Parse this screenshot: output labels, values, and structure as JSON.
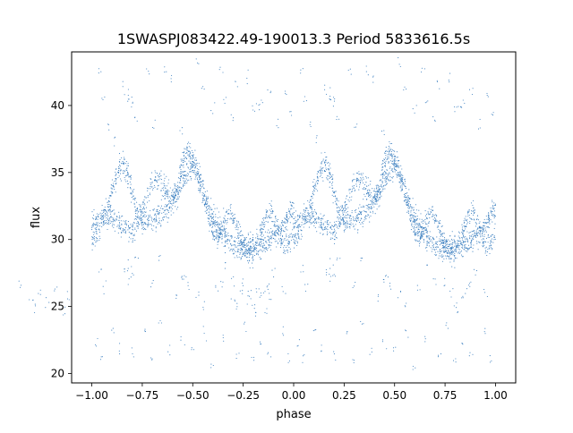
{
  "chart_data": {
    "type": "scatter",
    "title": "1SWASPJ083422.49-190013.3 Period 5833616.5s",
    "xlabel": "phase",
    "ylabel": "flux",
    "xlim": [
      -1.1,
      1.1
    ],
    "ylim": [
      19.3,
      44.0
    ],
    "x_ticks": [
      -1.0,
      -0.75,
      -0.5,
      -0.25,
      0.0,
      0.25,
      0.5,
      0.75,
      1.0
    ],
    "x_tick_labels": [
      "−1.00",
      "−0.75",
      "−0.50",
      "−0.25",
      "0.00",
      "0.25",
      "0.50",
      "0.75",
      "1.00"
    ],
    "y_ticks": [
      20,
      25,
      30,
      35,
      40
    ],
    "y_tick_labels": [
      "20",
      "25",
      "30",
      "35",
      "40"
    ],
    "grid": false,
    "legend": "none",
    "marker_color": "#3a7ebf",
    "phase_folded": true,
    "series": [
      {
        "x": [
          0.0,
          0.02,
          0.04,
          0.06,
          0.08,
          0.1,
          0.12,
          0.14,
          0.16,
          0.18,
          0.2,
          0.22,
          0.24,
          0.26,
          0.28,
          0.3,
          0.32,
          0.34,
          0.36,
          0.38,
          0.4,
          0.42,
          0.44,
          0.46,
          0.48,
          0.5,
          0.52,
          0.54,
          0.56,
          0.58,
          0.6,
          0.62,
          0.64,
          0.66,
          0.68,
          0.7,
          0.72,
          0.74,
          0.76,
          0.78,
          0.8,
          0.82,
          0.84,
          0.86,
          0.88,
          0.9,
          0.92,
          0.94,
          0.96,
          0.98,
          1.0
        ],
        "y": [
          29.8,
          30.2,
          30.9,
          31.8,
          32.6,
          33.6,
          34.6,
          35.5,
          35.5,
          34.8,
          33.5,
          32.2,
          31.6,
          31.3,
          31.3,
          31.5,
          31.6,
          31.8,
          32.2,
          32.4,
          32.8,
          33.4,
          35.0,
          36.2,
          36.4,
          36.0,
          35.3,
          34.3,
          33.2,
          32.4,
          31.6,
          31.0,
          30.6,
          30.2,
          29.8,
          29.6,
          29.5,
          29.4,
          29.4,
          29.4,
          29.5,
          29.6,
          29.7,
          29.8,
          30.0,
          30.2,
          30.4,
          30.8,
          31.4,
          31.9,
          32.2
        ]
      },
      {
        "x": [
          0.0,
          0.02,
          0.04,
          0.06,
          0.08,
          0.1,
          0.12,
          0.14,
          0.16,
          0.18,
          0.2,
          0.22,
          0.24,
          0.26,
          0.28,
          0.3,
          0.32,
          0.34,
          0.36,
          0.38,
          0.4,
          0.42,
          0.44,
          0.46,
          0.48,
          0.5,
          0.52,
          0.54,
          0.56,
          0.58,
          0.6,
          0.62,
          0.64,
          0.66,
          0.68,
          0.7,
          0.72,
          0.74,
          0.76,
          0.78,
          0.8,
          0.82,
          0.84,
          0.86,
          0.88,
          0.9,
          0.92,
          0.94,
          0.96,
          0.98,
          1.0
        ],
        "y": [
          31.2,
          31.4,
          31.6,
          31.8,
          31.8,
          31.6,
          31.4,
          31.2,
          31.0,
          30.8,
          30.6,
          31.0,
          31.8,
          32.6,
          33.4,
          34.0,
          34.4,
          34.3,
          33.8,
          33.4,
          33.2,
          33.4,
          33.8,
          34.6,
          35.2,
          35.4,
          35.0,
          34.0,
          32.8,
          31.6,
          30.6,
          30.2,
          30.6,
          31.4,
          32.0,
          31.6,
          30.8,
          30.0,
          29.4,
          29.0,
          28.8,
          29.4,
          30.6,
          31.6,
          32.2,
          31.8,
          30.8,
          30.0,
          29.6,
          29.8,
          30.4
        ]
      },
      {
        "x": [
          -0.36,
          -0.3,
          -0.28,
          -0.26,
          -0.22,
          -0.18,
          -0.14,
          -0.12,
          0.04,
          0.06,
          0.17,
          0.18,
          0.19,
          0.2,
          0.22,
          0.3,
          0.33,
          0.42,
          0.44,
          0.46,
          0.48,
          0.52,
          0.56,
          0.62,
          0.66,
          0.7,
          0.74,
          0.78,
          0.8,
          0.82,
          0.84,
          0.86,
          0.88,
          0.9,
          0.95
        ],
        "y": [
          26.5,
          25.8,
          25.2,
          26.2,
          25.5,
          26.4,
          24.8,
          25.6,
          27.8,
          26.3,
          27.6,
          27.2,
          28.2,
          27.4,
          28.6,
          26.6,
          28.4,
          25.6,
          26.8,
          27.2,
          26.5,
          26.0,
          25.0,
          26.4,
          27.8,
          27.0,
          26.8,
          26.0,
          25.2,
          24.6,
          25.4,
          26.2,
          26.8,
          27.5,
          26.0
        ]
      },
      {
        "x": [
          0.04,
          0.06,
          0.09,
          0.12,
          0.16,
          0.18,
          0.19,
          0.2,
          0.22,
          0.28,
          0.31,
          0.36,
          0.4,
          0.44,
          0.52,
          0.55,
          0.6,
          0.64,
          0.66,
          0.7,
          0.72,
          0.77,
          0.8,
          0.82,
          0.84,
          0.88,
          0.92,
          0.96,
          0.98
        ],
        "y": [
          42.8,
          40.6,
          38.8,
          37.6,
          41.2,
          40.4,
          41.0,
          40.2,
          39.0,
          42.4,
          38.6,
          42.6,
          41.8,
          38.2,
          43.2,
          41.4,
          39.8,
          42.8,
          40.4,
          39.2,
          41.6,
          42.0,
          39.9,
          39.8,
          40.0,
          41.2,
          38.6,
          40.6,
          39.4
        ]
      },
      {
        "x": [
          0.02,
          0.05,
          0.1,
          0.14,
          0.2,
          0.26,
          0.3,
          0.34,
          0.38,
          0.45,
          0.5,
          0.56,
          0.6,
          0.66,
          0.72,
          0.76,
          0.8,
          0.84,
          0.88,
          0.94,
          0.98
        ],
        "y": [
          22.4,
          21.0,
          23.2,
          22.0,
          21.4,
          22.8,
          20.8,
          23.6,
          21.8,
          22.2,
          21.6,
          23.0,
          20.6,
          22.6,
          21.2,
          23.4,
          20.8,
          22.0,
          21.6,
          23.0,
          21.2
        ]
      }
    ]
  }
}
